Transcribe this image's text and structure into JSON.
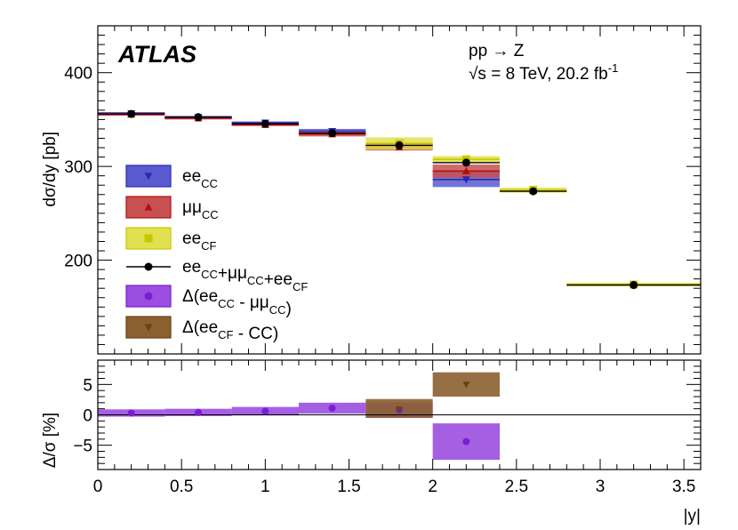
{
  "chart_data": {
    "type": "scatter",
    "experiment": "ATLAS",
    "process": "pp → Z",
    "energy_text": "√s = 8 TeV, 20.2 fb",
    "lumi_exponent": "-1",
    "upper": {
      "ylabel": "dσ/dy [pb]",
      "ylim": [
        100,
        450
      ],
      "y_ticks": [
        200,
        300,
        400
      ],
      "bins": [
        [
          0.0,
          0.4
        ],
        [
          0.4,
          0.8
        ],
        [
          0.8,
          1.2
        ],
        [
          1.2,
          1.6
        ],
        [
          1.6,
          2.0
        ],
        [
          2.0,
          2.4
        ],
        [
          2.4,
          2.8
        ],
        [
          2.8,
          3.6
        ]
      ],
      "series": [
        {
          "name": "ee",
          "sub": "CC",
          "color": "#2a2ab0",
          "band": "#5a5ad0",
          "marker": "triangle-down",
          "values": [
            356.5,
            352.5,
            346.5,
            337.5,
            null,
            286.0,
            null,
            null
          ],
          "band_low": [
            355.0,
            351.0,
            345.0,
            335.0,
            null,
            278.0,
            null,
            null
          ],
          "band_high": [
            358.0,
            354.0,
            348.0,
            340.0,
            null,
            294.0,
            null,
            null
          ]
        },
        {
          "name": "μμ",
          "sub": "CC",
          "color": "#b01010",
          "band": "#c85050",
          "marker": "triangle-up",
          "values": [
            355.5,
            351.5,
            344.5,
            334.5,
            320.5,
            295.0,
            null,
            null
          ],
          "band_low": [
            354.0,
            350.0,
            343.0,
            332.0,
            317.0,
            288.0,
            null,
            null
          ],
          "band_high": [
            357.0,
            353.0,
            346.0,
            337.0,
            324.0,
            302.0,
            null,
            null
          ]
        },
        {
          "name": "ee",
          "sub": "CF",
          "color": "#c8c800",
          "band": "#e0e050",
          "marker": "square",
          "values": [
            null,
            null,
            null,
            null,
            324.5,
            307.5,
            275.0,
            174.0
          ],
          "band_low": [
            null,
            null,
            null,
            null,
            318.0,
            304.0,
            272.0,
            172.0
          ],
          "band_high": [
            null,
            null,
            null,
            null,
            331.0,
            311.0,
            277.5,
            176.0
          ]
        },
        {
          "name": "combined",
          "legend": "ee_CC+μμ_CC+ee_CF",
          "color": "#000000",
          "marker": "circle",
          "values": [
            356.0,
            352.5,
            345.5,
            335.5,
            322.5,
            304.0,
            273.5,
            173.5
          ]
        }
      ]
    },
    "lower": {
      "ylabel": "Δ/σ [%]",
      "ylim": [
        -9,
        9
      ],
      "y_ticks": [
        -5,
        0,
        5
      ],
      "series": [
        {
          "name": "Δ(ee_CC - μμ_CC)",
          "color": "#7a1fd0",
          "band": "#9b4ee0",
          "marker": "circle",
          "values": [
            0.3,
            0.4,
            0.6,
            1.1,
            0.8,
            -4.4,
            null,
            null
          ],
          "band_low": [
            -0.3,
            -0.2,
            -0.1,
            0.2,
            -0.5,
            -7.4,
            null,
            null
          ],
          "band_high": [
            0.9,
            1.0,
            1.3,
            2.0,
            2.1,
            -1.4,
            null,
            null
          ]
        },
        {
          "name": "Δ(ee_CF - CC)",
          "color": "#6b4010",
          "band": "#8b6030",
          "marker": "triangle-down",
          "values": [
            null,
            null,
            null,
            null,
            0.9,
            5.0,
            null,
            null
          ],
          "band_low": [
            null,
            null,
            null,
            null,
            -0.5,
            3.0,
            null,
            null
          ],
          "band_high": [
            null,
            null,
            null,
            null,
            2.6,
            7.0,
            null,
            null
          ]
        }
      ]
    },
    "xlabel": "|y|",
    "xlim": [
      0,
      3.6
    ],
    "x_ticks": [
      0,
      0.5,
      1,
      1.5,
      2,
      2.5,
      3,
      3.5
    ],
    "x_tick_labels": [
      "0",
      "0.5",
      "1",
      "1.5",
      "2",
      "2.5",
      "3",
      "3.5"
    ]
  },
  "legend": [
    {
      "key": "ee_cc",
      "main": "ee",
      "sub": "CC",
      "suffix": "",
      "color": "#2a2ab0",
      "fill": "#5a5ad0",
      "marker": "triangle-down"
    },
    {
      "key": "mumu_cc",
      "main": "μμ",
      "sub": "CC",
      "suffix": "",
      "color": "#b01010",
      "fill": "#c85050",
      "marker": "triangle-up"
    },
    {
      "key": "ee_cf",
      "main": "ee",
      "sub": "CF",
      "suffix": "",
      "color": "#c8c800",
      "fill": "#e0e050",
      "marker": "square"
    },
    {
      "key": "combined",
      "parts": [
        [
          "ee",
          "CC"
        ],
        [
          "+μμ",
          "CC"
        ],
        [
          "+ee",
          "CF"
        ]
      ],
      "color": "#000000",
      "marker": "circle"
    },
    {
      "key": "delta_cc",
      "main": "Δ(ee",
      "sub": "CC",
      "mid": " - μμ",
      "sub2": "CC",
      "suffix": ")",
      "color": "#7a1fd0",
      "fill": "#9b4ee0",
      "marker": "circle"
    },
    {
      "key": "delta_cf",
      "main": "Δ(ee",
      "sub": "CF",
      "suffix": " - CC)",
      "color": "#6b4010",
      "fill": "#8b6030",
      "marker": "triangle-down"
    }
  ]
}
